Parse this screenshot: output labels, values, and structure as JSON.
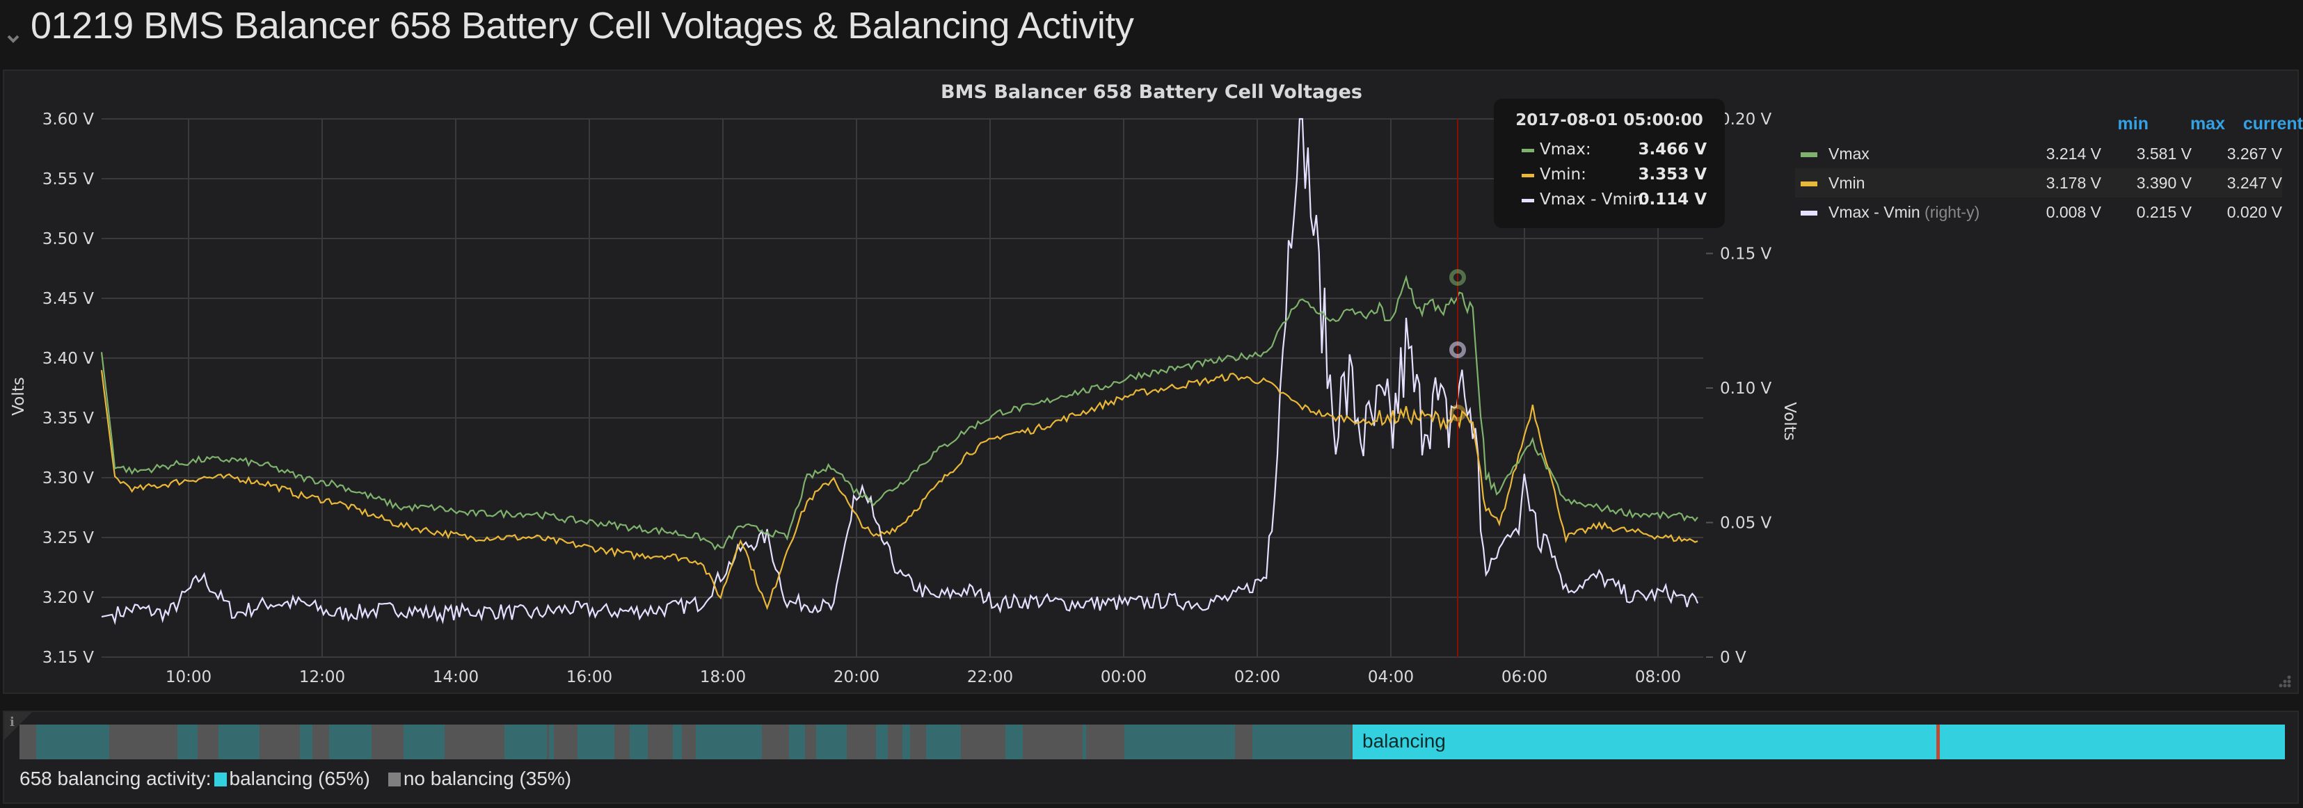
{
  "row": {
    "title": "01219 BMS Balancer 658 Battery Cell Voltages & Balancing Activity",
    "collapse_icon": "chevron-down-icon"
  },
  "graph_panel": {
    "title": "BMS Balancer 658 Battery Cell Voltages",
    "left_axis_label": "Volts",
    "right_axis_label": "Volts",
    "left_ticks": [
      "3.60 V",
      "3.55 V",
      "3.50 V",
      "3.45 V",
      "3.40 V",
      "3.35 V",
      "3.30 V",
      "3.25 V",
      "3.20 V",
      "3.15 V"
    ],
    "right_ticks": [
      "0.20 V",
      "0.15 V",
      "0.10 V",
      "0.05 V",
      "0 V"
    ],
    "x_ticks": [
      "10:00",
      "12:00",
      "14:00",
      "16:00",
      "18:00",
      "20:00",
      "22:00",
      "00:00",
      "02:00",
      "04:00",
      "06:00",
      "08:00"
    ],
    "legend": {
      "headers": {
        "min": "min",
        "max": "max",
        "current": "current"
      },
      "rows": [
        {
          "name": "Vmax",
          "suffix": "",
          "color": "#7eb26d",
          "min": "3.214 V",
          "max": "3.581 V",
          "current": "3.267 V"
        },
        {
          "name": "Vmin",
          "suffix": "",
          "color": "#eab839",
          "min": "3.178 V",
          "max": "3.390 V",
          "current": "3.247 V"
        },
        {
          "name": "Vmax - Vmin",
          "suffix": "(right-y)",
          "color": "#e5e0ff",
          "min": "0.008 V",
          "max": "0.215 V",
          "current": "0.020 V"
        }
      ]
    },
    "tooltip": {
      "time": "2017-08-01 05:00:00",
      "rows": [
        {
          "name": "Vmax:",
          "color": "#7eb26d",
          "value": "3.466 V"
        },
        {
          "name": "Vmin:",
          "color": "#eab839",
          "value": "3.353 V"
        },
        {
          "name": "Vmax - Vmin:",
          "color": "#e5e0ff",
          "value": "0.114 V"
        }
      ]
    },
    "cursor_color": "#890f02"
  },
  "status_panel": {
    "info_icon": "info-icon",
    "hover_label": "balancing",
    "legend_prefix": "658 balancing activity:",
    "states": [
      {
        "label": "balancing (65%)",
        "color": "#33d0df"
      },
      {
        "label": "no balancing (35%)",
        "color": "#808080"
      }
    ]
  },
  "chart_data": {
    "type": "line",
    "title": "BMS Balancer 658 Battery Cell Voltages",
    "xlabel": "",
    "ylabel": "Volts",
    "y2label": "Volts",
    "x_range": [
      "08:42",
      "08:41 (+1 day)"
    ],
    "ylim": [
      3.15,
      3.6
    ],
    "y2lim": [
      0,
      0.2
    ],
    "grid": true,
    "legend_position": "right",
    "x_hours_from_0842": [
      0,
      0.2,
      0.5,
      1,
      1.5,
      2,
      2.5,
      3,
      3.5,
      4,
      4.5,
      5,
      5.5,
      6,
      6.5,
      7,
      7.5,
      8,
      8.5,
      9,
      9.3,
      9.6,
      10,
      10.3,
      10.6,
      11,
      11.3,
      11.6,
      12,
      12.5,
      13,
      13.5,
      14,
      14.5,
      15,
      15.5,
      16,
      16.5,
      17,
      17.5,
      18,
      18.5,
      18.75,
      19,
      19.2,
      19.4,
      19.6,
      19.8,
      20,
      20.2,
      20.4,
      20.6,
      20.8,
      21,
      21.5,
      22,
      22.5,
      23,
      23.5,
      23.98
    ],
    "series": [
      {
        "name": "Vmax",
        "axis": "left",
        "color": "#7eb26d",
        "values": [
          3.405,
          3.31,
          3.305,
          3.31,
          3.315,
          3.315,
          3.31,
          3.3,
          3.295,
          3.285,
          3.275,
          3.275,
          3.27,
          3.27,
          3.27,
          3.265,
          3.262,
          3.258,
          3.255,
          3.25,
          3.24,
          3.26,
          3.255,
          3.25,
          3.3,
          3.31,
          3.29,
          3.28,
          3.295,
          3.32,
          3.34,
          3.355,
          3.36,
          3.37,
          3.375,
          3.385,
          3.39,
          3.395,
          3.4,
          3.405,
          3.45,
          3.43,
          3.44,
          3.435,
          3.44,
          3.43,
          3.466,
          3.44,
          3.445,
          3.44,
          3.45,
          3.44,
          3.3,
          3.29,
          3.33,
          3.28,
          3.275,
          3.27,
          3.268,
          3.267
        ]
      },
      {
        "name": "Vmin",
        "axis": "left",
        "color": "#eab839",
        "values": [
          3.39,
          3.3,
          3.29,
          3.295,
          3.3,
          3.3,
          3.295,
          3.285,
          3.28,
          3.27,
          3.26,
          3.255,
          3.25,
          3.25,
          3.25,
          3.245,
          3.24,
          3.235,
          3.235,
          3.23,
          3.2,
          3.25,
          3.19,
          3.24,
          3.28,
          3.3,
          3.27,
          3.25,
          3.26,
          3.29,
          3.32,
          3.335,
          3.34,
          3.35,
          3.36,
          3.37,
          3.375,
          3.38,
          3.385,
          3.38,
          3.36,
          3.35,
          3.35,
          3.345,
          3.35,
          3.35,
          3.353,
          3.35,
          3.35,
          3.348,
          3.35,
          3.345,
          3.27,
          3.26,
          3.36,
          3.25,
          3.26,
          3.255,
          3.25,
          3.247
        ]
      },
      {
        "name": "Vmax - Vmin",
        "axis": "right",
        "color": "#e5e0ff",
        "values": [
          0.015,
          0.016,
          0.018,
          0.016,
          0.03,
          0.016,
          0.02,
          0.02,
          0.016,
          0.017,
          0.018,
          0.016,
          0.017,
          0.017,
          0.016,
          0.018,
          0.017,
          0.017,
          0.018,
          0.02,
          0.03,
          0.04,
          0.045,
          0.02,
          0.02,
          0.018,
          0.06,
          0.05,
          0.03,
          0.022,
          0.025,
          0.02,
          0.021,
          0.02,
          0.02,
          0.02,
          0.021,
          0.02,
          0.022,
          0.03,
          0.21,
          0.09,
          0.1,
          0.08,
          0.09,
          0.085,
          0.114,
          0.09,
          0.095,
          0.085,
          0.1,
          0.09,
          0.03,
          0.04,
          0.06,
          0.025,
          0.03,
          0.022,
          0.024,
          0.02
        ]
      }
    ]
  }
}
